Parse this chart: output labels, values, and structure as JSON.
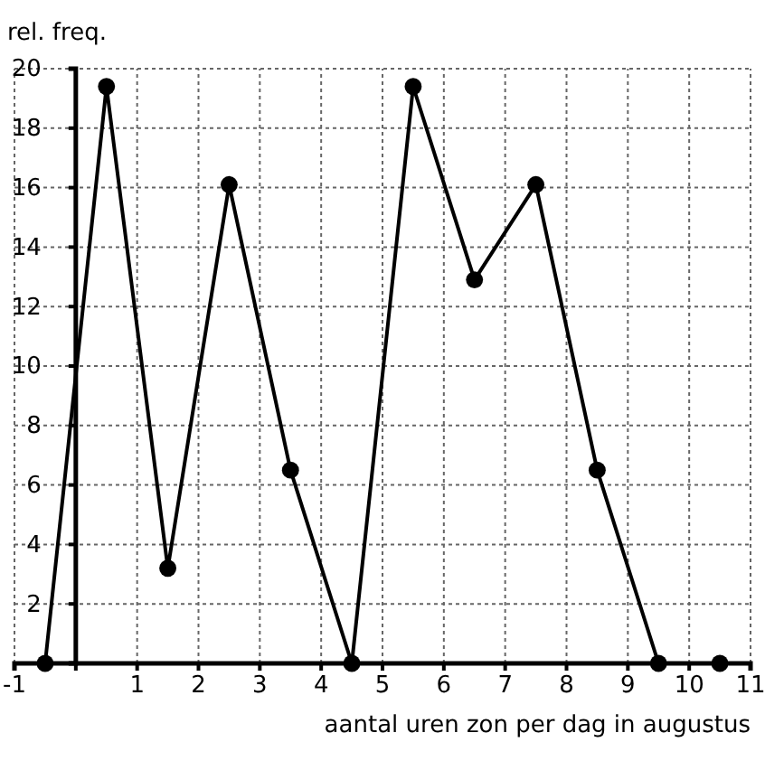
{
  "chart_data": {
    "type": "line",
    "ylabel": "rel. freq.",
    "xlabel": "aantal uren zon per dag in augustus",
    "x": [
      -0.5,
      0.5,
      1.5,
      2.5,
      3.5,
      4.5,
      5.5,
      6.5,
      7.5,
      8.5,
      9.5,
      10.5
    ],
    "series": [
      {
        "color": "#000000",
        "values": [
          0,
          19.4,
          3.2,
          16.1,
          6.5,
          0,
          19.4,
          12.9,
          16.1,
          6.5,
          0,
          0
        ]
      }
    ],
    "xlim": [
      -1,
      11
    ],
    "xticks": [
      -1,
      {
        "value": 0,
        "label": null
      },
      1,
      2,
      3,
      4,
      5,
      6,
      7,
      8,
      9,
      10,
      11
    ],
    "ylim": [
      0,
      20
    ],
    "yticks": [
      {
        "value": 0,
        "label": null
      },
      2,
      4,
      6,
      8,
      10,
      12,
      14,
      16,
      18,
      20
    ],
    "grid": true,
    "marker": "circle",
    "line_style": "solid"
  }
}
